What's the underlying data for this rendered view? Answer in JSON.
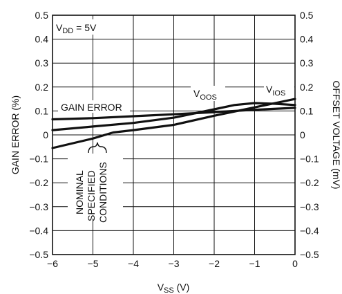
{
  "chart_data": {
    "type": "line",
    "xlabel_main": "V",
    "xlabel_sub": "SS",
    "xlabel_unit": " (V)",
    "ylabel_left": "GAIN ERROR (%)",
    "ylabel_right": "OFFSET VOLTAGE (mV)",
    "xlim": [
      -6,
      0
    ],
    "ylim": [
      -0.5,
      0.5
    ],
    "y2lim": [
      -0.5,
      0.5
    ],
    "grid": true,
    "x_ticks": [
      "−6",
      "−5",
      "−4",
      "−3",
      "−2",
      "−1",
      "0"
    ],
    "y_ticks": [
      "0.5",
      "0.4",
      "0.3",
      "0.2",
      "0.1",
      "0",
      "−0.1",
      "−0.2",
      "−0.3",
      "−0.4",
      "−0.5"
    ],
    "y_tick_values": [
      0.5,
      0.4,
      0.3,
      0.2,
      0.1,
      0,
      -0.1,
      -0.2,
      -0.3,
      -0.4,
      -0.5
    ],
    "x_tick_values": [
      -6,
      -5,
      -4,
      -3,
      -2,
      -1,
      0
    ],
    "series": [
      {
        "name": "GAIN ERROR",
        "x": [
          -6,
          -5,
          -4,
          -3,
          -2,
          -1,
          0
        ],
        "y": [
          0.065,
          0.07,
          0.078,
          0.086,
          0.095,
          0.105,
          0.113
        ]
      },
      {
        "name": "V_OOS",
        "x": [
          -6,
          -5,
          -4,
          -3,
          -2,
          -1.5,
          -1,
          -0.5,
          0
        ],
        "y": [
          0.02,
          0.035,
          0.05,
          0.072,
          0.107,
          0.125,
          0.133,
          0.13,
          0.125
        ]
      },
      {
        "name": "V_IOS",
        "x": [
          -6,
          -5,
          -4.5,
          -4,
          -3,
          -2,
          -1,
          0
        ],
        "y": [
          -0.055,
          -0.015,
          0.01,
          0.02,
          0.042,
          0.08,
          0.115,
          0.15
        ]
      }
    ],
    "annotations": {
      "vdd_main": "V",
      "vdd_sub": "DD",
      "vdd_rest": " = 5V",
      "gain_error": "GAIN ERROR",
      "voos_main": "V",
      "voos_sub": "OOS",
      "vios_main": "V",
      "vios_sub": "IOS",
      "nominal_lines": [
        "NOMINAL",
        "SPECIFIED",
        "CONDITIONS"
      ]
    }
  }
}
